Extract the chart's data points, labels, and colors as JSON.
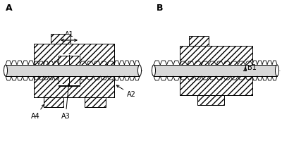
{
  "bg_color": "#ffffff",
  "label_A": "A",
  "label_B": "B",
  "label_A1": "A1",
  "label_A2": "A2",
  "label_A3": "A3",
  "label_A4": "A4",
  "label_B1": "B1",
  "font_size_label": 7,
  "font_size_AB": 9,
  "centerline_color": "#999999",
  "spindle_color": "#d8d8d8",
  "white": "#ffffff"
}
